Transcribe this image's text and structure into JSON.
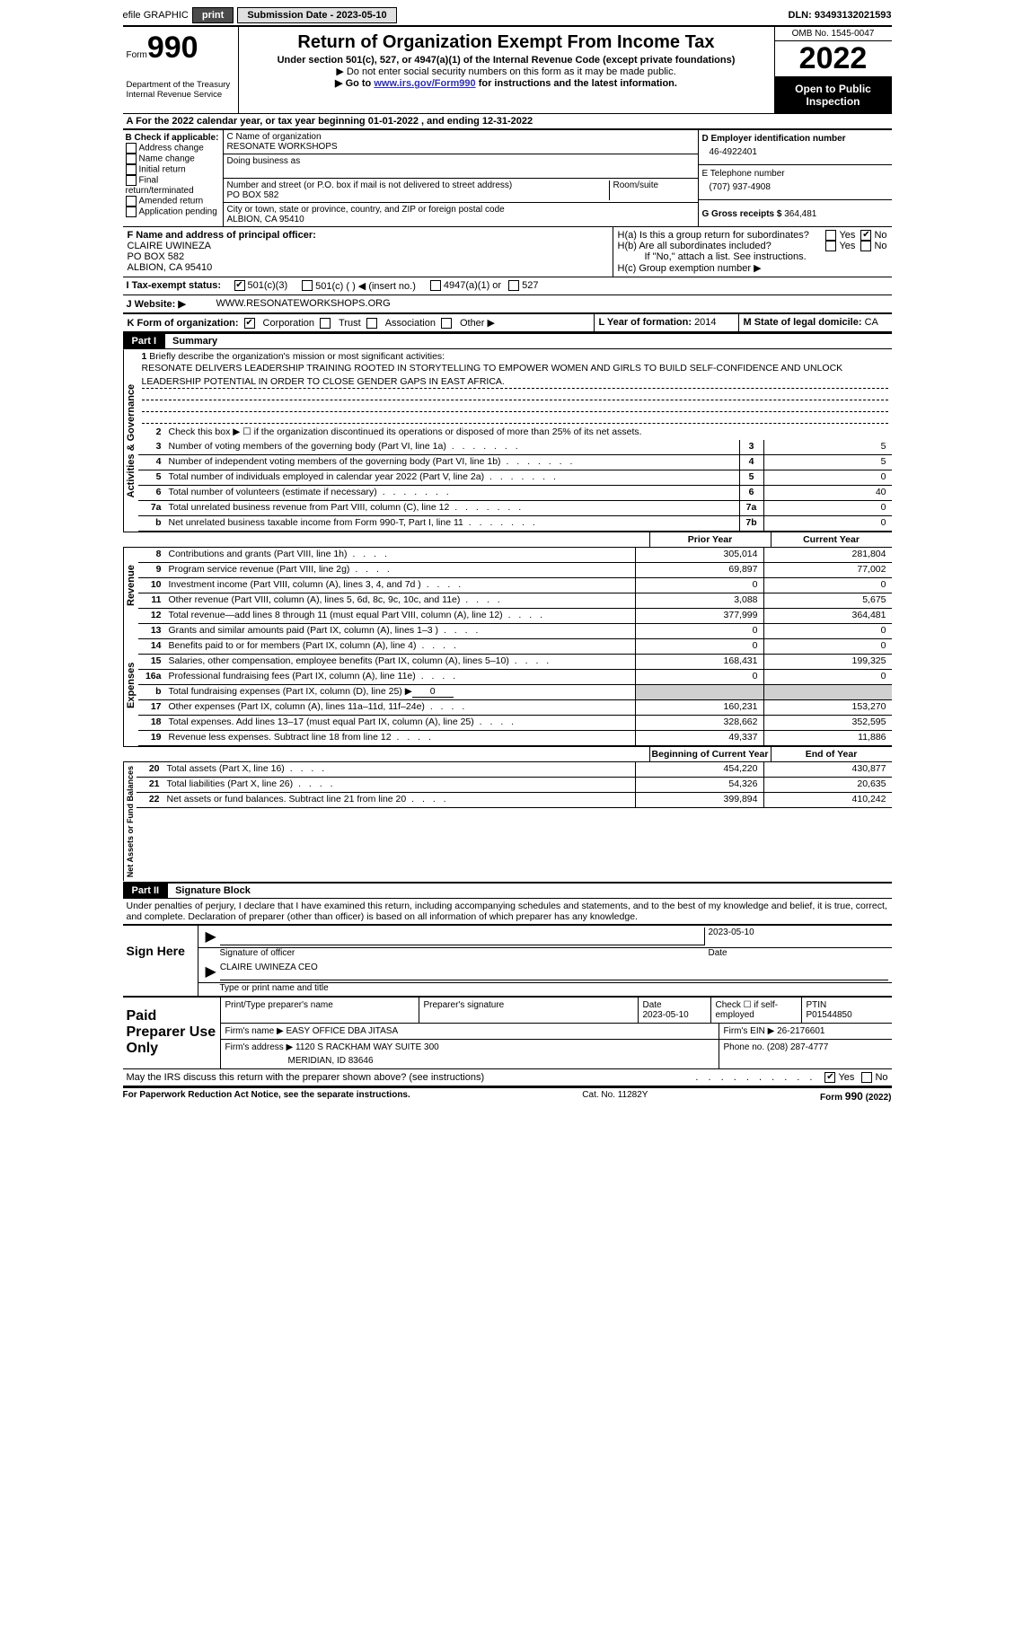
{
  "top": {
    "efile": "efile GRAPHIC",
    "print": "print",
    "sub_date_label": "Submission Date - 2023-05-10",
    "dln": "DLN: 93493132021593"
  },
  "header": {
    "form_label": "Form",
    "form_number": "990",
    "dept": "Department of the Treasury",
    "irs": "Internal Revenue Service",
    "title": "Return of Organization Exempt From Income Tax",
    "sub1": "Under section 501(c), 527, or 4947(a)(1) of the Internal Revenue Code (except private foundations)",
    "sub2": "▶ Do not enter social security numbers on this form as it may be made public.",
    "sub3_pre": "▶ Go to ",
    "sub3_link": "www.irs.gov/Form990",
    "sub3_post": " for instructions and the latest information.",
    "omb": "OMB No. 1545-0047",
    "year": "2022",
    "open": "Open to Public Inspection"
  },
  "period": {
    "a_label": "A  For the 2022 calendar year, or tax year beginning ",
    "begin": "01-01-2022",
    "mid": "   , and ending ",
    "end": "12-31-2022"
  },
  "b": {
    "label": "B Check if applicable:",
    "opts": [
      "Address change",
      "Name change",
      "Initial return",
      "Final return/terminated",
      "Amended return",
      "Application pending"
    ]
  },
  "c": {
    "name_label": "C Name of organization",
    "name": "RESONATE WORKSHOPS",
    "dba_label": "Doing business as",
    "addr_label": "Number and street (or P.O. box if mail is not delivered to street address)",
    "room": "Room/suite",
    "addr": "PO BOX 582",
    "city_label": "City or town, state or province, country, and ZIP or foreign postal code",
    "city": "ALBION, CA   95410"
  },
  "d": {
    "ein_label": "D Employer identification number",
    "ein": "46-4922401",
    "tel_label": "E Telephone number",
    "tel": "(707) 937-4908",
    "gross_label": "G Gross receipts $ ",
    "gross": "364,481"
  },
  "f": {
    "label": "F Name and address of principal officer:",
    "name": "CLAIRE UWINEZA",
    "addr1": "PO BOX 582",
    "addr2": "ALBION, CA   95410"
  },
  "h": {
    "ha": "H(a)   Is this a group return for subordinates?",
    "hb": "H(b)   Are all subordinates included?",
    "hb_note": "If \"No,\" attach a list. See instructions.",
    "hc": "H(c)   Group exemption number ▶",
    "yes": "Yes",
    "no": "No"
  },
  "i": {
    "label": "I    Tax-exempt status:",
    "c3": "501(c)(3)",
    "c_other": "501(c) (   ) ◀ (insert no.)",
    "c4947": "4947(a)(1) or",
    "c527": "527"
  },
  "j": {
    "label": "J    Website: ▶",
    "val": "WWW.RESONATEWORKSHOPS.ORG"
  },
  "k": {
    "label": "K Form of organization:",
    "corp": "Corporation",
    "trust": "Trust",
    "assoc": "Association",
    "other": "Other ▶"
  },
  "l": {
    "label": "L Year of formation: ",
    "val": "2014"
  },
  "m": {
    "label": "M State of legal domicile: ",
    "val": "CA"
  },
  "part1": {
    "header": "Part I",
    "title": "Summary",
    "vtab_ag": "Activities & Governance",
    "vtab_rev": "Revenue",
    "vtab_exp": "Expenses",
    "vtab_net": "Net Assets or Fund Balances",
    "mission_label": "Briefly describe the organization's mission or most significant activities:",
    "mission": "RESONATE DELIVERS LEADERSHIP TRAINING ROOTED IN STORYTELLING TO EMPOWER WOMEN AND GIRLS TO BUILD SELF-CONFIDENCE AND UNLOCK LEADERSHIP POTENTIAL IN ORDER TO CLOSE GENDER GAPS IN EAST AFRICA.",
    "line2": "Check this box ▶ ☐   if the organization discontinued its operations or disposed of more than 25% of its net assets.",
    "lines_single": [
      {
        "n": "3",
        "d": "Number of voting members of the governing body (Part VI, line 1a)",
        "box": "3",
        "v": "5"
      },
      {
        "n": "4",
        "d": "Number of independent voting members of the governing body (Part VI, line 1b)",
        "box": "4",
        "v": "5"
      },
      {
        "n": "5",
        "d": "Total number of individuals employed in calendar year 2022 (Part V, line 2a)",
        "box": "5",
        "v": "0"
      },
      {
        "n": "6",
        "d": "Total number of volunteers (estimate if necessary)",
        "box": "6",
        "v": "40"
      },
      {
        "n": "7a",
        "d": "Total unrelated business revenue from Part VIII, column (C), line 12",
        "box": "7a",
        "v": "0"
      },
      {
        "n": "b",
        "d": "Net unrelated business taxable income from Form 990-T, Part I, line 11",
        "box": "7b",
        "v": "0"
      }
    ],
    "col_prior": "Prior Year",
    "col_current": "Current Year",
    "col_begin": "Beginning of Current Year",
    "col_end": "End of Year",
    "revenue": [
      {
        "n": "8",
        "d": "Contributions and grants (Part VIII, line 1h)",
        "p": "305,014",
        "c": "281,804"
      },
      {
        "n": "9",
        "d": "Program service revenue (Part VIII, line 2g)",
        "p": "69,897",
        "c": "77,002"
      },
      {
        "n": "10",
        "d": "Investment income (Part VIII, column (A), lines 3, 4, and 7d )",
        "p": "0",
        "c": "0"
      },
      {
        "n": "11",
        "d": "Other revenue (Part VIII, column (A), lines 5, 6d, 8c, 9c, 10c, and 11e)",
        "p": "3,088",
        "c": "5,675"
      },
      {
        "n": "12",
        "d": "Total revenue—add lines 8 through 11 (must equal Part VIII, column (A), line 12)",
        "p": "377,999",
        "c": "364,481"
      }
    ],
    "expenses": [
      {
        "n": "13",
        "d": "Grants and similar amounts paid (Part IX, column (A), lines 1–3 )",
        "p": "0",
        "c": "0"
      },
      {
        "n": "14",
        "d": "Benefits paid to or for members (Part IX, column (A), line 4)",
        "p": "0",
        "c": "0"
      },
      {
        "n": "15",
        "d": "Salaries, other compensation, employee benefits (Part IX, column (A), lines 5–10)",
        "p": "168,431",
        "c": "199,325"
      },
      {
        "n": "16a",
        "d": "Professional fundraising fees (Part IX, column (A), line 11e)",
        "p": "0",
        "c": "0"
      }
    ],
    "line16b_label": "Total fundraising expenses (Part IX, column (D), line 25) ▶",
    "line16b_val": "0",
    "expenses2": [
      {
        "n": "17",
        "d": "Other expenses (Part IX, column (A), lines 11a–11d, 11f–24e)",
        "p": "160,231",
        "c": "153,270"
      },
      {
        "n": "18",
        "d": "Total expenses. Add lines 13–17 (must equal Part IX, column (A), line 25)",
        "p": "328,662",
        "c": "352,595"
      },
      {
        "n": "19",
        "d": "Revenue less expenses. Subtract line 18 from line 12",
        "p": "49,337",
        "c": "11,886"
      }
    ],
    "netassets": [
      {
        "n": "20",
        "d": "Total assets (Part X, line 16)",
        "p": "454,220",
        "c": "430,877"
      },
      {
        "n": "21",
        "d": "Total liabilities (Part X, line 26)",
        "p": "54,326",
        "c": "20,635"
      },
      {
        "n": "22",
        "d": "Net assets or fund balances. Subtract line 21 from line 20",
        "p": "399,894",
        "c": "410,242"
      }
    ]
  },
  "part2": {
    "header": "Part II",
    "title": "Signature Block",
    "decl": "Under penalties of perjury, I declare that I have examined this return, including accompanying schedules and statements, and to the best of my knowledge and belief, it is true, correct, and complete. Declaration of preparer (other than officer) is based on all information of which preparer has any knowledge.",
    "sign_here": "Sign Here",
    "sig_officer": "Signature of officer",
    "sig_date": "Date",
    "sig_date_val": "2023-05-10",
    "sig_name": "CLAIRE UWINEZA CEO",
    "sig_name_label": "Type or print name and title",
    "paid_label": "Paid Preparer Use Only",
    "prep_name_label": "Print/Type preparer's name",
    "prep_sig_label": "Preparer's signature",
    "prep_date_label": "Date",
    "prep_date_val": "2023-05-10",
    "prep_check_label": "Check ☐ if self-employed",
    "ptin_label": "PTIN",
    "ptin": "P01544850",
    "firm_name_label": "Firm's name    ▶ ",
    "firm_name": "EASY OFFICE DBA JITASA",
    "firm_ein_label": "Firm's EIN ▶ ",
    "firm_ein": "26-2176601",
    "firm_addr_label": "Firm's address ▶ ",
    "firm_addr1": "1120 S RACKHAM WAY SUITE 300",
    "firm_addr2": "MERIDIAN, ID   83646",
    "phone_label": "Phone no. ",
    "phone": "(208) 287-4777",
    "discuss": "May the IRS discuss this return with the preparer shown above? (see instructions)"
  },
  "footer": {
    "pra": "For Paperwork Reduction Act Notice, see the separate instructions.",
    "cat": "Cat. No. 11282Y",
    "form": "Form 990 (2022)"
  }
}
